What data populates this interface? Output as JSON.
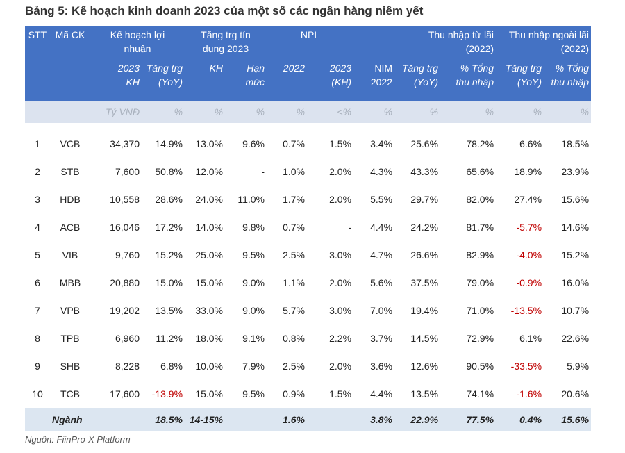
{
  "title": "Bảng 5: Kế hoạch kinh doanh 2023 của một số các ngân hàng niêm yết",
  "header": {
    "stt": "STT",
    "ma_ck": "Mã CK",
    "group_plan_l1": "Kế hoạch lợi",
    "group_plan_l2": "nhuận",
    "group_credit_l1": "Tăng trg tín",
    "group_credit_l2": "dụng 2023",
    "group_npl": "NPL",
    "group_interest_l1": "Thu nhập từ lãi",
    "group_interest_l2": "(2022)",
    "group_noninterest_l1": "Thu nhập ngoài lãi",
    "group_noninterest_l2": "(2022)",
    "sub": {
      "plan_kh_l1": "2023",
      "plan_kh_l2": "KH",
      "plan_yoy_l1": "Tăng trg",
      "plan_yoy_l2": "(YoY)",
      "credit_kh": "KH",
      "credit_limit_l1": "Hạn",
      "credit_limit_l2": "mức",
      "npl_2022": "2022",
      "npl_2023_l1": "2023",
      "npl_2023_l2": "(KH)",
      "nim_l1": "NIM",
      "nim_l2": "2022",
      "int_yoy_l1": "Tăng trg",
      "int_yoy_l2": "(YoY)",
      "int_share_l1": "% Tổng",
      "int_share_l2": "thu nhập",
      "nonint_yoy_l1": "Tăng trg",
      "nonint_yoy_l2": "(YoY)",
      "nonint_share_l1": "% Tổng",
      "nonint_share_l2": "thu nhập"
    },
    "units": [
      "Tỷ VNĐ",
      "%",
      "%",
      "%",
      "%",
      "<%",
      "%",
      "%",
      "%",
      "%",
      "%"
    ]
  },
  "rows": [
    {
      "stt": "1",
      "code": "VCB",
      "plan": "34,370",
      "plan_yoy": "14.9%",
      "credit_kh": "13.0%",
      "credit_limit": "9.6%",
      "npl_2022": "0.7%",
      "npl_2023": "1.5%",
      "nim": "3.4%",
      "int_yoy": "25.6%",
      "int_share": "78.2%",
      "nonint_yoy": "6.6%",
      "nonint_share": "18.5%"
    },
    {
      "stt": "2",
      "code": "STB",
      "plan": "7,600",
      "plan_yoy": "50.8%",
      "credit_kh": "12.0%",
      "credit_limit": "-",
      "npl_2022": "1.0%",
      "npl_2023": "2.0%",
      "nim": "4.3%",
      "int_yoy": "43.3%",
      "int_share": "65.6%",
      "nonint_yoy": "18.9%",
      "nonint_share": "23.9%"
    },
    {
      "stt": "3",
      "code": "HDB",
      "plan": "10,558",
      "plan_yoy": "28.6%",
      "credit_kh": "24.0%",
      "credit_limit": "11.0%",
      "npl_2022": "1.7%",
      "npl_2023": "2.0%",
      "nim": "5.5%",
      "int_yoy": "29.7%",
      "int_share": "82.0%",
      "nonint_yoy": "27.4%",
      "nonint_share": "15.6%"
    },
    {
      "stt": "4",
      "code": "ACB",
      "plan": "16,046",
      "plan_yoy": "17.2%",
      "credit_kh": "14.0%",
      "credit_limit": "9.8%",
      "npl_2022": "0.7%",
      "npl_2023": "-",
      "nim": "4.4%",
      "int_yoy": "24.2%",
      "int_share": "81.7%",
      "nonint_yoy": "-5.7%",
      "nonint_share": "14.6%"
    },
    {
      "stt": "5",
      "code": "VIB",
      "plan": "9,760",
      "plan_yoy": "15.2%",
      "credit_kh": "25.0%",
      "credit_limit": "9.5%",
      "npl_2022": "2.5%",
      "npl_2023": "3.0%",
      "nim": "4.7%",
      "int_yoy": "26.6%",
      "int_share": "82.9%",
      "nonint_yoy": "-4.0%",
      "nonint_share": "15.2%"
    },
    {
      "stt": "6",
      "code": "MBB",
      "plan": "20,880",
      "plan_yoy": "15.0%",
      "credit_kh": "15.0%",
      "credit_limit": "9.0%",
      "npl_2022": "1.1%",
      "npl_2023": "2.0%",
      "nim": "5.6%",
      "int_yoy": "37.5%",
      "int_share": "79.0%",
      "nonint_yoy": "-0.9%",
      "nonint_share": "16.0%"
    },
    {
      "stt": "7",
      "code": "VPB",
      "plan": "19,202",
      "plan_yoy": "13.5%",
      "credit_kh": "33.0%",
      "credit_limit": "9.0%",
      "npl_2022": "5.7%",
      "npl_2023": "3.0%",
      "nim": "7.0%",
      "int_yoy": "19.4%",
      "int_share": "71.0%",
      "nonint_yoy": "-13.5%",
      "nonint_share": "10.7%"
    },
    {
      "stt": "8",
      "code": "TPB",
      "plan": "6,960",
      "plan_yoy": "11.2%",
      "credit_kh": "18.0%",
      "credit_limit": "9.1%",
      "npl_2022": "0.8%",
      "npl_2023": "2.2%",
      "nim": "3.7%",
      "int_yoy": "14.5%",
      "int_share": "72.9%",
      "nonint_yoy": "6.1%",
      "nonint_share": "22.6%"
    },
    {
      "stt": "9",
      "code": "SHB",
      "plan": "8,228",
      "plan_yoy": "6.8%",
      "credit_kh": "10.0%",
      "credit_limit": "7.9%",
      "npl_2022": "2.5%",
      "npl_2023": "2.0%",
      "nim": "3.6%",
      "int_yoy": "12.6%",
      "int_share": "90.5%",
      "nonint_yoy": "-33.5%",
      "nonint_share": "5.9%"
    },
    {
      "stt": "10",
      "code": "TCB",
      "plan": "17,600",
      "plan_yoy": "-13.9%",
      "credit_kh": "15.0%",
      "credit_limit": "9.5%",
      "npl_2022": "0.9%",
      "npl_2023": "1.5%",
      "nim": "4.4%",
      "int_yoy": "13.5%",
      "int_share": "74.1%",
      "nonint_yoy": "-1.6%",
      "nonint_share": "20.6%"
    }
  ],
  "total": {
    "label": "Ngành",
    "plan_yoy": "18.5%",
    "credit_kh": "14-15%",
    "npl_2022": "1.6%",
    "nim": "3.8%",
    "int_yoy": "22.9%",
    "int_share": "77.5%",
    "nonint_yoy": "0.4%",
    "nonint_share": "15.6%"
  },
  "source": "Nguồn: FiinPro-X Platform",
  "colors": {
    "header_bg": "#4472c4",
    "unit_row_bg": "#dce3ef",
    "total_row_bg": "#dce6f1",
    "negative": "#c00000"
  }
}
